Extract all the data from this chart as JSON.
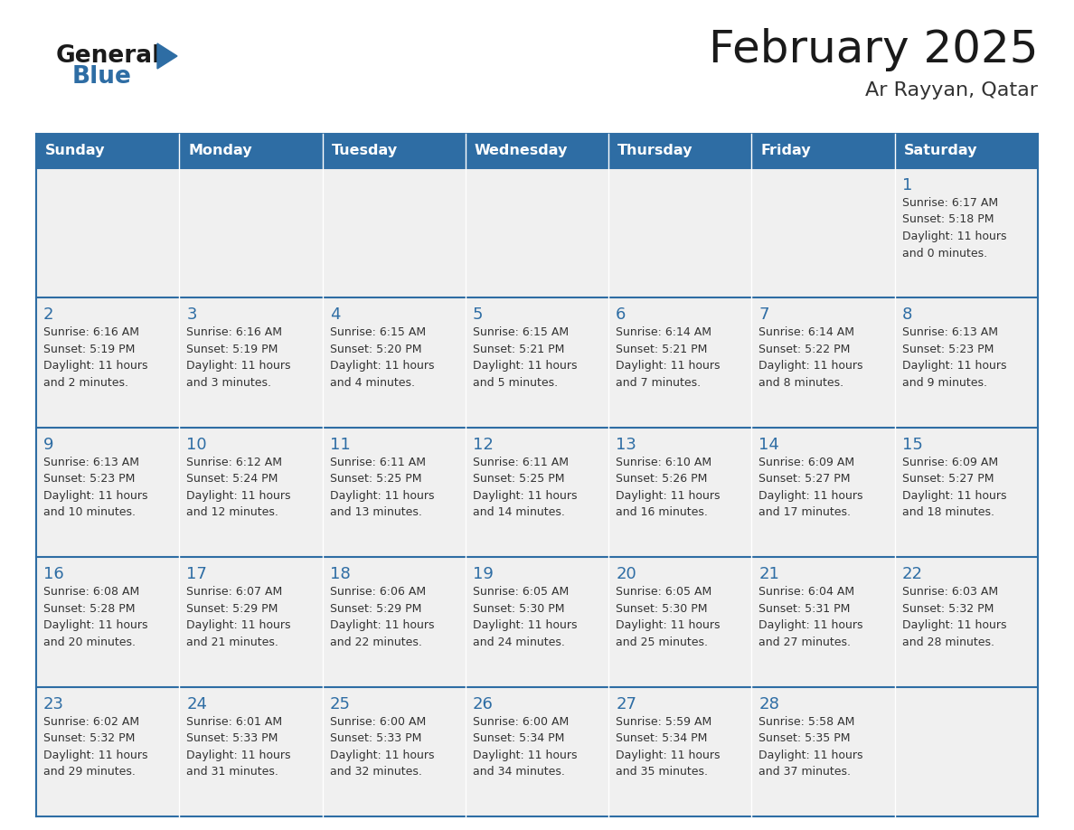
{
  "title": "February 2025",
  "subtitle": "Ar Rayyan, Qatar",
  "days_of_week": [
    "Sunday",
    "Monday",
    "Tuesday",
    "Wednesday",
    "Thursday",
    "Friday",
    "Saturday"
  ],
  "header_bg": "#2E6DA4",
  "header_text": "#FFFFFF",
  "cell_bg": "#F0F0F0",
  "cell_bg_white": "#FFFFFF",
  "cell_border": "#2E6DA4",
  "title_color": "#1a1a1a",
  "subtitle_color": "#333333",
  "day_number_color": "#2E6DA4",
  "info_text_color": "#333333",
  "logo_general_color": "#1a1a1a",
  "logo_blue_color": "#2E6DA4",
  "calendar_data": [
    {
      "day": 1,
      "row": 0,
      "col": 6,
      "sunrise": "6:17 AM",
      "sunset": "5:18 PM",
      "daylight_hours": 11,
      "daylight_minutes": 0
    },
    {
      "day": 2,
      "row": 1,
      "col": 0,
      "sunrise": "6:16 AM",
      "sunset": "5:19 PM",
      "daylight_hours": 11,
      "daylight_minutes": 2
    },
    {
      "day": 3,
      "row": 1,
      "col": 1,
      "sunrise": "6:16 AM",
      "sunset": "5:19 PM",
      "daylight_hours": 11,
      "daylight_minutes": 3
    },
    {
      "day": 4,
      "row": 1,
      "col": 2,
      "sunrise": "6:15 AM",
      "sunset": "5:20 PM",
      "daylight_hours": 11,
      "daylight_minutes": 4
    },
    {
      "day": 5,
      "row": 1,
      "col": 3,
      "sunrise": "6:15 AM",
      "sunset": "5:21 PM",
      "daylight_hours": 11,
      "daylight_minutes": 5
    },
    {
      "day": 6,
      "row": 1,
      "col": 4,
      "sunrise": "6:14 AM",
      "sunset": "5:21 PM",
      "daylight_hours": 11,
      "daylight_minutes": 7
    },
    {
      "day": 7,
      "row": 1,
      "col": 5,
      "sunrise": "6:14 AM",
      "sunset": "5:22 PM",
      "daylight_hours": 11,
      "daylight_minutes": 8
    },
    {
      "day": 8,
      "row": 1,
      "col": 6,
      "sunrise": "6:13 AM",
      "sunset": "5:23 PM",
      "daylight_hours": 11,
      "daylight_minutes": 9
    },
    {
      "day": 9,
      "row": 2,
      "col": 0,
      "sunrise": "6:13 AM",
      "sunset": "5:23 PM",
      "daylight_hours": 11,
      "daylight_minutes": 10
    },
    {
      "day": 10,
      "row": 2,
      "col": 1,
      "sunrise": "6:12 AM",
      "sunset": "5:24 PM",
      "daylight_hours": 11,
      "daylight_minutes": 12
    },
    {
      "day": 11,
      "row": 2,
      "col": 2,
      "sunrise": "6:11 AM",
      "sunset": "5:25 PM",
      "daylight_hours": 11,
      "daylight_minutes": 13
    },
    {
      "day": 12,
      "row": 2,
      "col": 3,
      "sunrise": "6:11 AM",
      "sunset": "5:25 PM",
      "daylight_hours": 11,
      "daylight_minutes": 14
    },
    {
      "day": 13,
      "row": 2,
      "col": 4,
      "sunrise": "6:10 AM",
      "sunset": "5:26 PM",
      "daylight_hours": 11,
      "daylight_minutes": 16
    },
    {
      "day": 14,
      "row": 2,
      "col": 5,
      "sunrise": "6:09 AM",
      "sunset": "5:27 PM",
      "daylight_hours": 11,
      "daylight_minutes": 17
    },
    {
      "day": 15,
      "row": 2,
      "col": 6,
      "sunrise": "6:09 AM",
      "sunset": "5:27 PM",
      "daylight_hours": 11,
      "daylight_minutes": 18
    },
    {
      "day": 16,
      "row": 3,
      "col": 0,
      "sunrise": "6:08 AM",
      "sunset": "5:28 PM",
      "daylight_hours": 11,
      "daylight_minutes": 20
    },
    {
      "day": 17,
      "row": 3,
      "col": 1,
      "sunrise": "6:07 AM",
      "sunset": "5:29 PM",
      "daylight_hours": 11,
      "daylight_minutes": 21
    },
    {
      "day": 18,
      "row": 3,
      "col": 2,
      "sunrise": "6:06 AM",
      "sunset": "5:29 PM",
      "daylight_hours": 11,
      "daylight_minutes": 22
    },
    {
      "day": 19,
      "row": 3,
      "col": 3,
      "sunrise": "6:05 AM",
      "sunset": "5:30 PM",
      "daylight_hours": 11,
      "daylight_minutes": 24
    },
    {
      "day": 20,
      "row": 3,
      "col": 4,
      "sunrise": "6:05 AM",
      "sunset": "5:30 PM",
      "daylight_hours": 11,
      "daylight_minutes": 25
    },
    {
      "day": 21,
      "row": 3,
      "col": 5,
      "sunrise": "6:04 AM",
      "sunset": "5:31 PM",
      "daylight_hours": 11,
      "daylight_minutes": 27
    },
    {
      "day": 22,
      "row": 3,
      "col": 6,
      "sunrise": "6:03 AM",
      "sunset": "5:32 PM",
      "daylight_hours": 11,
      "daylight_minutes": 28
    },
    {
      "day": 23,
      "row": 4,
      "col": 0,
      "sunrise": "6:02 AM",
      "sunset": "5:32 PM",
      "daylight_hours": 11,
      "daylight_minutes": 29
    },
    {
      "day": 24,
      "row": 4,
      "col": 1,
      "sunrise": "6:01 AM",
      "sunset": "5:33 PM",
      "daylight_hours": 11,
      "daylight_minutes": 31
    },
    {
      "day": 25,
      "row": 4,
      "col": 2,
      "sunrise": "6:00 AM",
      "sunset": "5:33 PM",
      "daylight_hours": 11,
      "daylight_minutes": 32
    },
    {
      "day": 26,
      "row": 4,
      "col": 3,
      "sunrise": "6:00 AM",
      "sunset": "5:34 PM",
      "daylight_hours": 11,
      "daylight_minutes": 34
    },
    {
      "day": 27,
      "row": 4,
      "col": 4,
      "sunrise": "5:59 AM",
      "sunset": "5:34 PM",
      "daylight_hours": 11,
      "daylight_minutes": 35
    },
    {
      "day": 28,
      "row": 4,
      "col": 5,
      "sunrise": "5:58 AM",
      "sunset": "5:35 PM",
      "daylight_hours": 11,
      "daylight_minutes": 37
    }
  ]
}
